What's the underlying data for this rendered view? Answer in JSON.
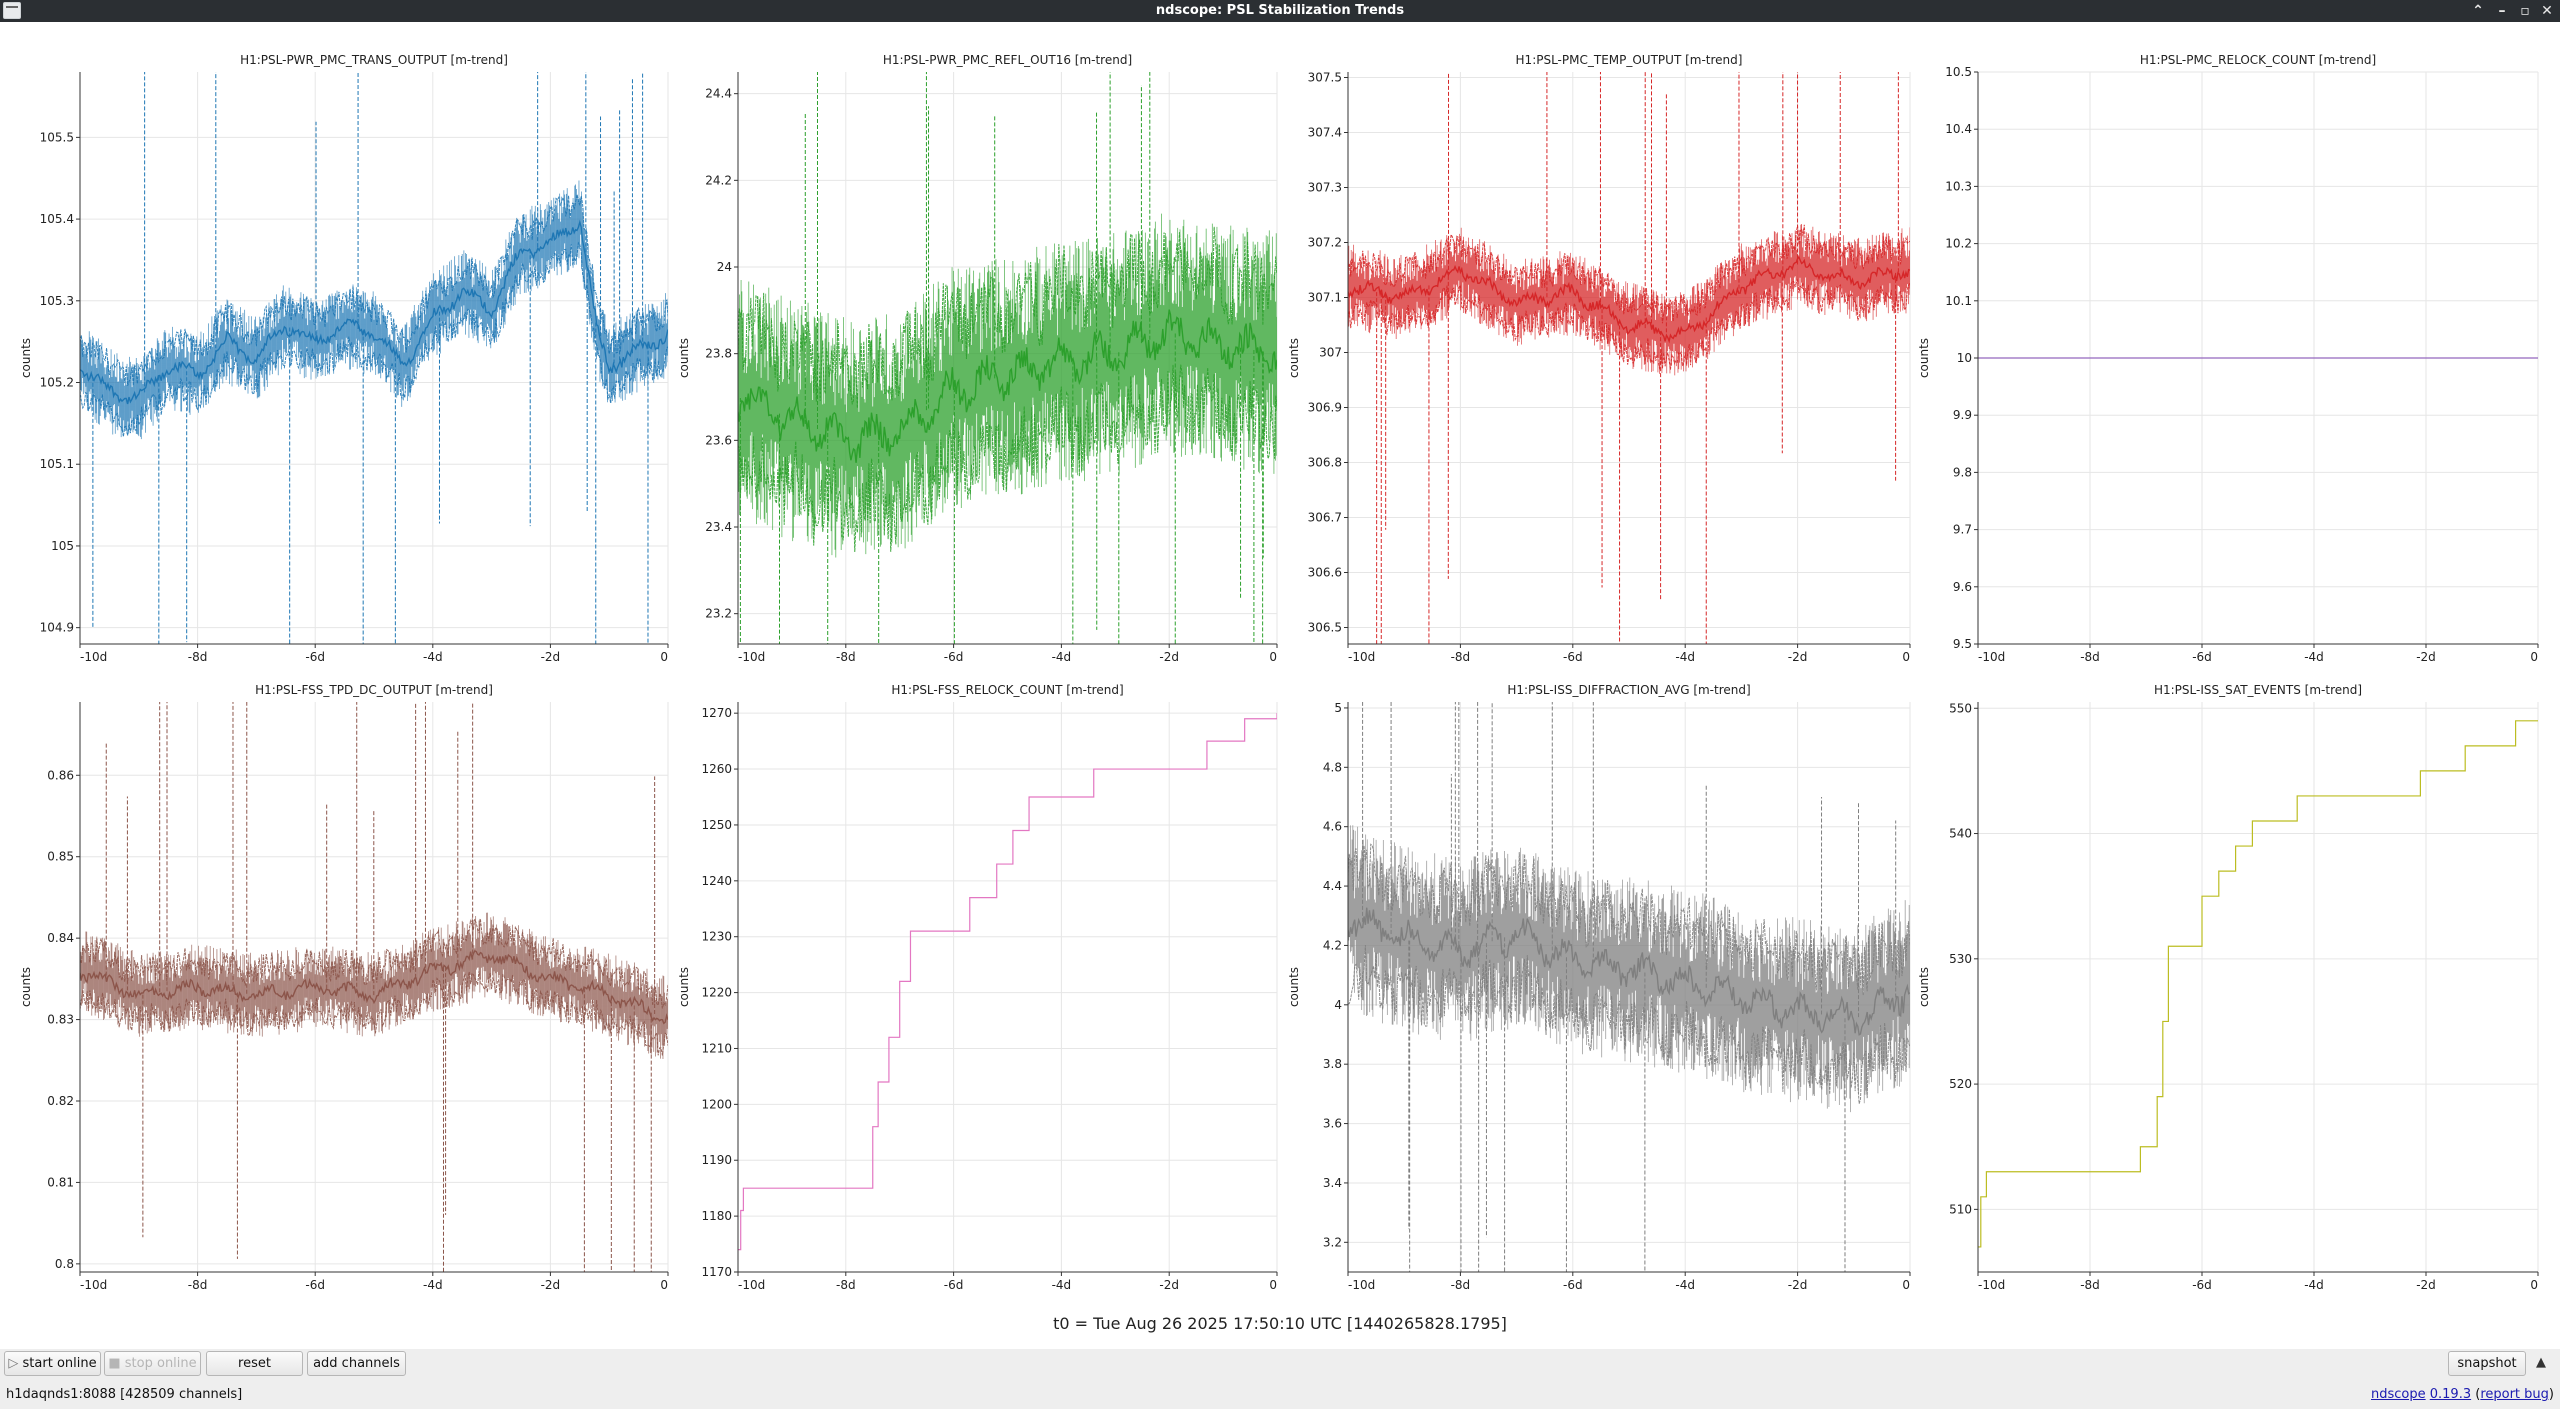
{
  "window": {
    "title": "ndscope: PSL Stabilization Trends"
  },
  "t0_label": "t0 = Tue Aug 26 2025 17:50:10 UTC [1440265828.1795]",
  "toolbar": {
    "start_online": "start online",
    "stop_online": "stop online",
    "reset": "reset",
    "add_channels": "add channels",
    "snapshot": "snapshot"
  },
  "status": {
    "server": "h1daqnds1:8088  [428509 channels]",
    "app_name": "ndscope",
    "version": "0.19.3",
    "report_bug": "report bug"
  },
  "chart_data": [
    {
      "type": "line",
      "title": "H1:PSL-PWR_PMC_TRANS_OUTPUT [m-trend]",
      "ylabel": "counts",
      "ylim": [
        104.88,
        105.58
      ],
      "yticks": [
        "104.9",
        "105",
        "105.1",
        "105.2",
        "105.3",
        "105.4",
        "105.5"
      ],
      "xticks": [
        "-10d",
        "-8d",
        "-6d",
        "-4d",
        "-2d",
        "0"
      ],
      "xlim": [
        -10,
        0
      ],
      "grid": true,
      "color": "#1f77b4",
      "series": [
        {
          "x": [
            -10,
            -9.5,
            -9,
            -8.5,
            -8,
            -7.5,
            -7,
            -6.5,
            -6,
            -5.5,
            -5,
            -4.5,
            -4,
            -3.5,
            -3,
            -2.5,
            -2,
            -1.5,
            -1.2,
            -1,
            -0.5,
            0
          ],
          "values": [
            105.22,
            105.19,
            105.18,
            105.22,
            105.21,
            105.25,
            105.23,
            105.27,
            105.25,
            105.27,
            105.26,
            105.22,
            105.28,
            105.31,
            105.29,
            105.36,
            105.37,
            105.4,
            105.26,
            105.22,
            105.24,
            105.26
          ]
        }
      ]
    },
    {
      "type": "line",
      "title": "H1:PSL-PWR_PMC_REFL_OUT16 [m-trend]",
      "ylabel": "counts",
      "ylim": [
        23.13,
        24.45
      ],
      "yticks": [
        "23.2",
        "23.4",
        "23.6",
        "23.8",
        "24",
        "24.2",
        "24.4"
      ],
      "xticks": [
        "-10d",
        "-8d",
        "-6d",
        "-4d",
        "-2d",
        "0"
      ],
      "xlim": [
        -10,
        0
      ],
      "grid": true,
      "color": "#2ca02c",
      "series": [
        {
          "x": [
            -10,
            -9,
            -8,
            -7,
            -6,
            -5,
            -4,
            -3,
            -2,
            -1,
            0
          ],
          "values": [
            23.7,
            23.65,
            23.6,
            23.62,
            23.72,
            23.75,
            23.78,
            23.8,
            23.85,
            23.82,
            23.8
          ]
        }
      ]
    },
    {
      "type": "line",
      "title": "H1:PSL-PMC_TEMP_OUTPUT [m-trend]",
      "ylabel": "counts",
      "ylim": [
        306.47,
        307.51
      ],
      "yticks": [
        "306.5",
        "306.6",
        "306.7",
        "306.8",
        "306.9",
        "307",
        "307.1",
        "307.2",
        "307.3",
        "307.4",
        "307.5"
      ],
      "xticks": [
        "-10d",
        "-8d",
        "-6d",
        "-4d",
        "-2d",
        "0"
      ],
      "xlim": [
        -10,
        0
      ],
      "grid": true,
      "color": "#d62728",
      "series": [
        {
          "x": [
            -10,
            -9,
            -8,
            -7,
            -6,
            -5,
            -4,
            -3,
            -2,
            -1,
            0
          ],
          "values": [
            307.12,
            307.1,
            307.15,
            307.09,
            307.11,
            307.05,
            307.03,
            307.12,
            307.16,
            307.13,
            307.15
          ]
        }
      ]
    },
    {
      "type": "line",
      "title": "H1:PSL-PMC_RELOCK_COUNT [m-trend]",
      "ylabel": "counts",
      "ylim": [
        9.5,
        10.5
      ],
      "yticks": [
        "9.5",
        "9.6",
        "9.7",
        "9.8",
        "9.9",
        "10",
        "10.1",
        "10.2",
        "10.3",
        "10.4",
        "10.5"
      ],
      "xticks": [
        "-10d",
        "-8d",
        "-6d",
        "-4d",
        "-2d",
        "0"
      ],
      "xlim": [
        -10,
        0
      ],
      "grid": true,
      "color": "#9467bd",
      "series": [
        {
          "x": [
            -10,
            0
          ],
          "values": [
            10,
            10
          ]
        }
      ]
    },
    {
      "type": "line",
      "title": "H1:PSL-FSS_TPD_DC_OUTPUT [m-trend]",
      "ylabel": "counts",
      "ylim": [
        0.799,
        0.869
      ],
      "yticks": [
        "0.8",
        "0.81",
        "0.82",
        "0.83",
        "0.84",
        "0.85",
        "0.86"
      ],
      "xticks": [
        "-10d",
        "-8d",
        "-6d",
        "-4d",
        "-2d",
        "0"
      ],
      "xlim": [
        -10,
        0
      ],
      "grid": true,
      "color": "#8c564b",
      "series": [
        {
          "x": [
            -10,
            -9,
            -8,
            -7,
            -6,
            -5,
            -4,
            -3,
            -2,
            -1,
            0
          ],
          "values": [
            0.836,
            0.833,
            0.834,
            0.833,
            0.834,
            0.833,
            0.836,
            0.838,
            0.835,
            0.833,
            0.83
          ]
        }
      ]
    },
    {
      "type": "line",
      "title": "H1:PSL-FSS_RELOCK_COUNT [m-trend]",
      "ylabel": "counts",
      "ylim": [
        1170,
        1272
      ],
      "yticks": [
        "1170",
        "1180",
        "1190",
        "1200",
        "1210",
        "1220",
        "1230",
        "1240",
        "1250",
        "1260",
        "1270"
      ],
      "xticks": [
        "-10d",
        "-8d",
        "-6d",
        "-4d",
        "-2d",
        "0"
      ],
      "xlim": [
        -10,
        0
      ],
      "grid": true,
      "color": "#e377c2",
      "step": true,
      "series": [
        {
          "x": [
            -10,
            -9.95,
            -9.9,
            -7.6,
            -7.5,
            -7.4,
            -7.2,
            -7,
            -6.8,
            -6,
            -5.7,
            -5.2,
            -4.9,
            -4.6,
            -3.4,
            -1.3,
            -0.6,
            0
          ],
          "values": [
            1174,
            1181,
            1185,
            1185,
            1196,
            1204,
            1212,
            1222,
            1231,
            1231,
            1237,
            1243,
            1249,
            1255,
            1260,
            1265,
            1269,
            1270
          ]
        }
      ]
    },
    {
      "type": "line",
      "title": "H1:PSL-ISS_DIFFRACTION_AVG [m-trend]",
      "ylabel": "counts",
      "ylim": [
        3.1,
        5.02
      ],
      "yticks": [
        "3.2",
        "3.4",
        "3.6",
        "3.8",
        "4",
        "4.2",
        "4.4",
        "4.6",
        "4.8",
        "5"
      ],
      "xticks": [
        "-10d",
        "-8d",
        "-6d",
        "-4d",
        "-2d",
        "0"
      ],
      "xlim": [
        -10,
        0
      ],
      "grid": true,
      "color": "#7f7f7f",
      "series": [
        {
          "x": [
            -10,
            -9,
            -8,
            -7,
            -6,
            -5,
            -4,
            -3,
            -2,
            -1,
            0
          ],
          "values": [
            4.3,
            4.22,
            4.18,
            4.24,
            4.15,
            4.12,
            4.08,
            4.02,
            3.98,
            3.95,
            4.05
          ]
        }
      ]
    },
    {
      "type": "line",
      "title": "H1:PSL-ISS_SAT_EVENTS [m-trend]",
      "ylabel": "counts",
      "ylim": [
        505,
        550.5
      ],
      "yticks": [
        "510",
        "520",
        "530",
        "540",
        "550"
      ],
      "xticks": [
        "-10d",
        "-8d",
        "-6d",
        "-4d",
        "-2d",
        "0"
      ],
      "xlim": [
        -10,
        0
      ],
      "grid": true,
      "color": "#bcbd22",
      "step": true,
      "series": [
        {
          "x": [
            -10,
            -9.95,
            -9.85,
            -7.5,
            -7.1,
            -6.8,
            -6.7,
            -6.6,
            -6.0,
            -5.7,
            -5.4,
            -5.1,
            -4.3,
            -2.1,
            -1.3,
            -0.4,
            0
          ],
          "values": [
            507,
            511,
            513,
            513,
            515,
            519,
            525,
            531,
            535,
            537,
            539,
            541,
            543,
            545,
            547,
            549,
            549
          ]
        }
      ]
    }
  ]
}
